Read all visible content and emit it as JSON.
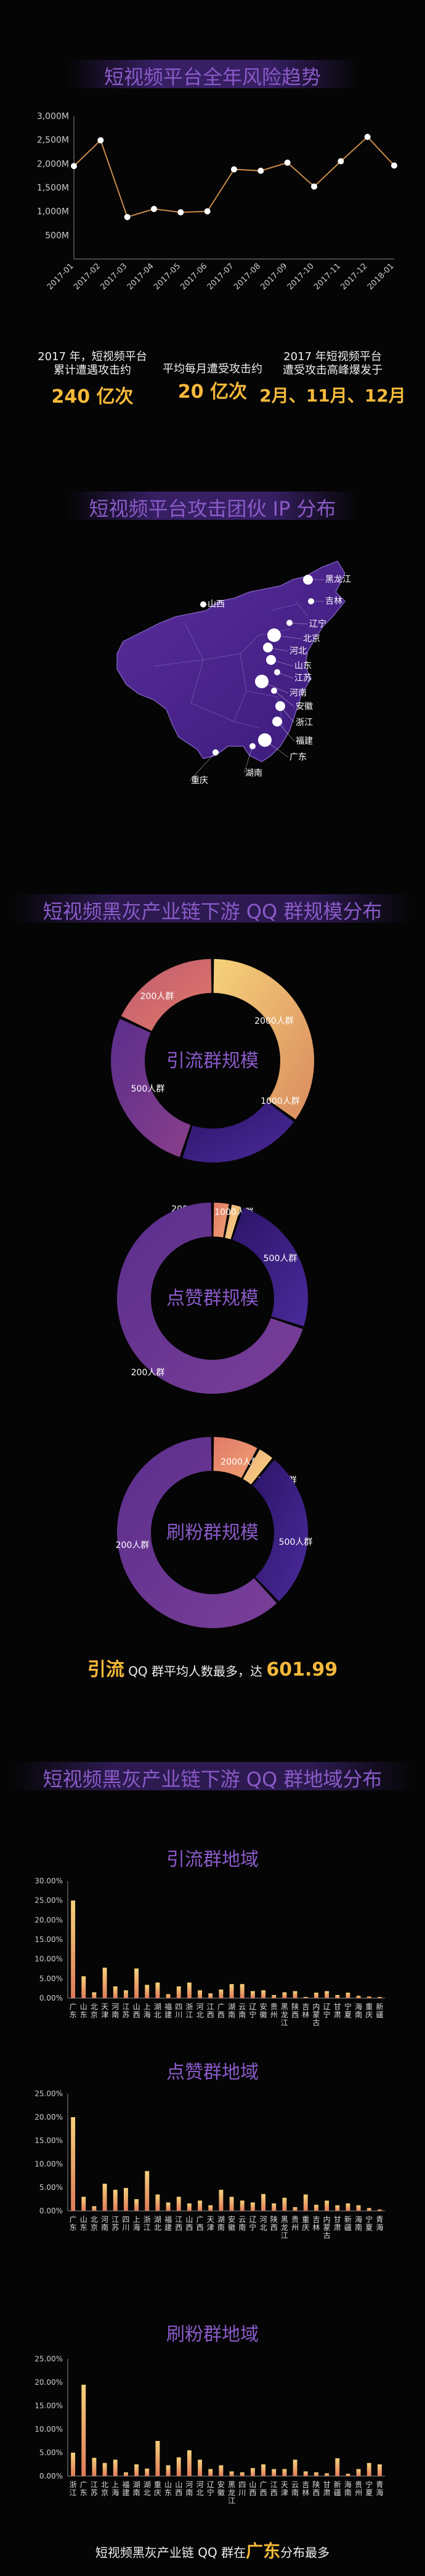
{
  "sections": {
    "trend_title": "短视频平台全年风险趋势",
    "ip_title": "短视频平台攻击团伙 IP 分布",
    "scale_title": "短视频黑灰产业链下游 QQ 群规模分布",
    "region_title": "短视频黑灰产业链下游 QQ 群地域分布"
  },
  "stats": [
    {
      "text1": "2017 年，短视频平台",
      "text2": "累计遭遇攻击约",
      "value": "240 亿次"
    },
    {
      "text1": "平均每月遭受攻击约",
      "text2": "",
      "value": "20 亿次"
    },
    {
      "text1": "2017 年短视频平台",
      "text2": "遭受攻击高峰爆发于",
      "value": "2月、11月、12月"
    }
  ],
  "scale_summary": {
    "prefix": "引流",
    "middle": "QQ 群平均人数最多，达",
    "value": "601.99"
  },
  "region_summary": {
    "prefix": "短视频黑灰产业链 QQ 群在",
    "value": "广东",
    "suffix": "分布最多"
  },
  "map_labels": [
    "山西",
    "黑龙江",
    "吉林",
    "辽宁",
    "北京",
    "河北",
    "山东",
    "江苏",
    "河南",
    "安徽",
    "浙江",
    "福建",
    "广东",
    "湖南",
    "重庆"
  ],
  "chart_data": [
    {
      "type": "line",
      "x": [
        "2017-01",
        "2017-02",
        "2017-03",
        "2017-04",
        "2017-05",
        "2017-06",
        "2017-07",
        "2017-08",
        "2017-09",
        "2017-10",
        "2017-11",
        "2017-12",
        "2018-01"
      ],
      "values": [
        1950,
        2490,
        880,
        1050,
        980,
        1000,
        1880,
        1850,
        2020,
        1520,
        2050,
        2560,
        1960
      ],
      "ylim": [
        0,
        3000
      ],
      "yticks": [
        "500M",
        "1,000M",
        "1,500M",
        "2,000M",
        "2,500M",
        "3,000M"
      ],
      "colors": {
        "line": "#c98a4a",
        "point": "#ffffff"
      }
    },
    {
      "type": "pie",
      "title": "引流群规模",
      "slices": [
        {
          "label": "2000人群",
          "value": 35,
          "colors": [
            "#f6d27a",
            "#d98a5e"
          ]
        },
        {
          "label": "1000人群",
          "value": 20,
          "colors": [
            "#2c1568",
            "#4a2a9a"
          ]
        },
        {
          "label": "500人群",
          "value": 27,
          "colors": [
            "#5a2e8c",
            "#8a3f8a"
          ]
        },
        {
          "label": "200人群",
          "value": 18,
          "colors": [
            "#c05a70",
            "#e07a6a"
          ]
        }
      ]
    },
    {
      "type": "pie",
      "title": "点赞群规模",
      "slices": [
        {
          "label": "2000人群",
          "value": 3,
          "colors": [
            "#e07a6a",
            "#f0a070"
          ]
        },
        {
          "label": "1000人群",
          "value": 2,
          "colors": [
            "#f0b080",
            "#f6d27a"
          ]
        },
        {
          "label": "500人群",
          "value": 25,
          "colors": [
            "#2c1568",
            "#4a2a9a"
          ]
        },
        {
          "label": "200人群",
          "value": 70,
          "colors": [
            "#5a2e8c",
            "#7a3f98"
          ]
        }
      ]
    },
    {
      "type": "pie",
      "title": "刷粉群规模",
      "slices": [
        {
          "label": "2000人群",
          "value": 8,
          "colors": [
            "#e07a6a",
            "#f0a070"
          ]
        },
        {
          "label": "1000人群",
          "value": 3,
          "colors": [
            "#f0b080",
            "#f6d27a"
          ]
        },
        {
          "label": "500人群",
          "value": 27,
          "colors": [
            "#2c1568",
            "#4a2a9a"
          ]
        },
        {
          "label": "200人群",
          "value": 62,
          "colors": [
            "#5a2e8c",
            "#7a3f98"
          ]
        }
      ]
    },
    {
      "type": "bar",
      "title": "引流群地域",
      "ylim": [
        0,
        30
      ],
      "yticks": [
        "0.00%",
        "5.00%",
        "10.00%",
        "15.00%",
        "20.00%",
        "25.00%",
        "30.00%"
      ],
      "categories": [
        "广东",
        "山东",
        "北京",
        "天津",
        "河南",
        "江苏",
        "山西",
        "上海",
        "湖北",
        "福建",
        "四川",
        "浙江",
        "河北",
        "江西",
        "广西",
        "湖南",
        "云南",
        "辽宁",
        "安徽",
        "贵州",
        "黑龙江",
        "陕西",
        "吉林",
        "内蒙古",
        "辽宁",
        "甘肃",
        "宁夏",
        "海南",
        "重庆",
        "新疆"
      ],
      "values": [
        25.0,
        5.6,
        1.5,
        7.8,
        3.0,
        2.0,
        7.6,
        3.4,
        4.0,
        1.0,
        3.0,
        4.0,
        2.0,
        1.2,
        2.2,
        3.6,
        3.6,
        1.8,
        2.0,
        0.8,
        1.5,
        1.8,
        0.3,
        1.4,
        1.8,
        0.8,
        1.4,
        0.6,
        0.4,
        0.3
      ]
    },
    {
      "type": "bar",
      "title": "点赞群地域",
      "ylim": [
        0,
        25
      ],
      "yticks": [
        "0.00%",
        "5.00%",
        "10.00%",
        "15.00%",
        "20.00%",
        "25.00%"
      ],
      "categories": [
        "广东",
        "山东",
        "北京",
        "河南",
        "江苏",
        "四川",
        "上海",
        "浙江",
        "湖北",
        "福建",
        "江西",
        "山西",
        "广西",
        "天津",
        "湖南",
        "安徽",
        "云南",
        "辽宁",
        "河北",
        "陕西",
        "黑龙江",
        "贵州",
        "重庆",
        "吉林",
        "内蒙古",
        "甘肃",
        "新疆",
        "海南",
        "宁夏",
        "青海"
      ],
      "values": [
        20.0,
        3.0,
        1.0,
        5.8,
        4.5,
        4.9,
        2.5,
        8.5,
        3.5,
        1.8,
        3.0,
        1.6,
        2.2,
        1.2,
        4.5,
        3.0,
        2.2,
        1.8,
        3.6,
        1.6,
        2.8,
        0.8,
        3.5,
        1.3,
        2.2,
        1.2,
        1.6,
        1.2,
        0.6,
        0.3
      ]
    },
    {
      "type": "bar",
      "title": "刷粉群地域",
      "ylim": [
        0,
        25
      ],
      "yticks": [
        "0.00%",
        "5.00%",
        "10.00%",
        "15.00%",
        "20.00%",
        "25.00%"
      ],
      "categories": [
        "浙江",
        "广东",
        "江苏",
        "北京",
        "上海",
        "福建",
        "湖南",
        "湖北",
        "重庆",
        "山东",
        "山西",
        "河南",
        "河北",
        "辽宁",
        "安徽",
        "黑龙江",
        "四川",
        "山西",
        "广西",
        "江西",
        "天津",
        "云南",
        "吉林",
        "陕西",
        "甘肃",
        "新疆",
        "海南",
        "贵州",
        "宁夏",
        "青海"
      ],
      "values": [
        5.0,
        19.5,
        3.9,
        2.8,
        3.5,
        0.8,
        2.5,
        1.6,
        7.5,
        2.3,
        4.0,
        5.5,
        3.5,
        1.5,
        2.3,
        1.0,
        0.8,
        1.7,
        2.5,
        1.5,
        1.5,
        3.5,
        1.0,
        0.8,
        0.6,
        3.8,
        0.5,
        1.5,
        2.8,
        2.5
      ]
    }
  ]
}
